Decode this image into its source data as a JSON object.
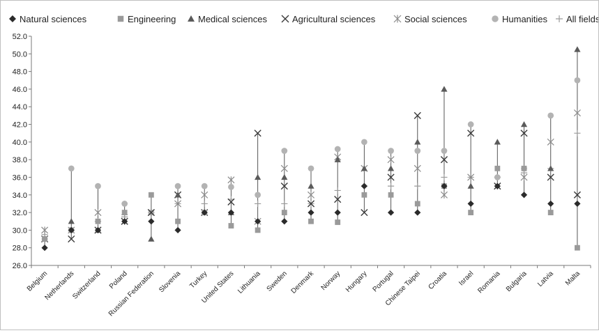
{
  "chart_data": {
    "type": "scatter",
    "title": "",
    "xlabel": "",
    "ylabel": "",
    "ylim": [
      26.0,
      52.0
    ],
    "ytick_step": 2,
    "grid": false,
    "legend_position": "top",
    "categories": [
      "Belgium",
      "Netherlands",
      "Switzerland",
      "Poland",
      "Russian Federation",
      "Slovenia",
      "Turkey",
      "United States",
      "Lithuania",
      "Sweden",
      "Denmark",
      "Norway",
      "Hungary",
      "Portugal",
      "Chinese Taipei",
      "Croatia",
      "Israel",
      "Romania",
      "Bulgaria",
      "Latvia",
      "Malta"
    ],
    "series": [
      {
        "name": "Natural sciences",
        "marker": "diamond",
        "color": "#2b2b2b",
        "values": [
          28,
          30,
          30,
          31,
          31,
          30,
          32,
          32,
          31,
          31,
          32,
          32,
          35,
          32,
          32,
          35,
          33,
          35,
          34,
          33,
          33
        ]
      },
      {
        "name": "Engineering",
        "marker": "square",
        "color": "#9a9a9a",
        "values": [
          29,
          30,
          31,
          32,
          34,
          31,
          32,
          30.5,
          30,
          32,
          31,
          30.9,
          34,
          34,
          33,
          35,
          32,
          37,
          37,
          32,
          28
        ]
      },
      {
        "name": "Medical sciences",
        "marker": "triangle",
        "color": "#5a5a5a",
        "values": [
          29,
          31,
          30,
          32,
          29,
          34,
          32,
          32,
          36,
          36,
          35,
          38,
          37,
          37,
          40,
          46,
          35,
          40,
          42,
          37,
          50.5
        ]
      },
      {
        "name": "Agricultural sciences",
        "marker": "x",
        "color": "#3a3a3a",
        "values": [
          29,
          29,
          30,
          31,
          32,
          34,
          32,
          33.2,
          41,
          35,
          33,
          33.5,
          32,
          36,
          43,
          38,
          41,
          35,
          41,
          36,
          34
        ]
      },
      {
        "name": "Social sciences",
        "marker": "star",
        "color": "#8a8a8a",
        "values": [
          30,
          30,
          32,
          31,
          32,
          33,
          34,
          35.7,
          31,
          37,
          34,
          38.3,
          37,
          38,
          37,
          34,
          36,
          35,
          36,
          40,
          43.3
        ]
      },
      {
        "name": "Humanities",
        "marker": "circle",
        "color": "#b3b3b3",
        "values": [
          29,
          37,
          35,
          33,
          32,
          35,
          35,
          34.9,
          34,
          39,
          37,
          39.2,
          40,
          39,
          39,
          39,
          42,
          36,
          37,
          43,
          47
        ]
      },
      {
        "name": "All fields",
        "marker": "plus",
        "color": "#9a9a9a",
        "values": [
          29.5,
          30,
          31,
          31.5,
          32,
          33,
          33,
          33.5,
          33,
          33,
          33,
          34.5,
          35,
          35,
          35,
          36,
          36,
          36,
          36.5,
          37,
          41
        ]
      }
    ]
  }
}
